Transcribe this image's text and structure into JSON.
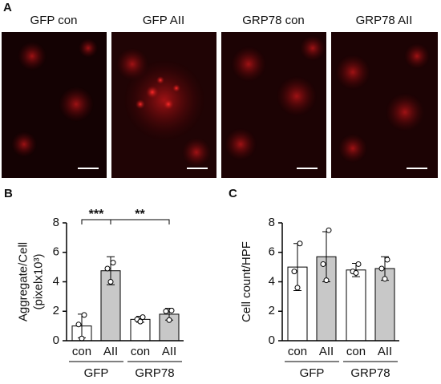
{
  "panel_a": {
    "label": "A",
    "images": [
      "GFP con",
      "GFP AII",
      "GRP78 con",
      "GRP78 AII"
    ]
  },
  "chart_data": [
    {
      "type": "bar",
      "label": "B",
      "ylabel": [
        "Aggregate/Cell",
        "(pixelx10³)"
      ],
      "categories": [
        "con",
        "AII",
        "con",
        "AII"
      ],
      "groups": [
        "GFP",
        "GRP78"
      ],
      "values": [
        1.0,
        4.75,
        1.45,
        1.8
      ],
      "errors": [
        0.8,
        0.95,
        0.2,
        0.4
      ],
      "points": [
        [
          1.75,
          1.1,
          0.15
        ],
        [
          5.3,
          4.9,
          4.0
        ],
        [
          1.6,
          1.45,
          1.3
        ],
        [
          2.05,
          2.0,
          1.4
        ]
      ],
      "colors": [
        "#ffffff",
        "#c8c8c8",
        "#ffffff",
        "#c8c8c8"
      ],
      "annotations": [
        "***",
        "**"
      ],
      "ylim": [
        0,
        8
      ],
      "yticks": [
        0,
        2,
        4,
        6,
        8
      ]
    },
    {
      "type": "bar",
      "label": "C",
      "ylabel": [
        "Cell count/HPF"
      ],
      "categories": [
        "con",
        "AII",
        "con",
        "AII"
      ],
      "groups": [
        "GFP",
        "GRP78"
      ],
      "values": [
        5.0,
        5.7,
        4.8,
        4.9
      ],
      "errors": [
        1.6,
        1.7,
        0.45,
        0.8
      ],
      "points": [
        [
          6.6,
          4.7,
          3.6
        ],
        [
          7.5,
          5.2,
          4.1
        ],
        [
          5.2,
          4.7,
          4.6
        ],
        [
          5.5,
          4.9,
          4.2
        ]
      ],
      "colors": [
        "#ffffff",
        "#c8c8c8",
        "#ffffff",
        "#c8c8c8"
      ],
      "ylim": [
        0,
        8
      ],
      "yticks": [
        0,
        2,
        4,
        6,
        8
      ]
    }
  ]
}
